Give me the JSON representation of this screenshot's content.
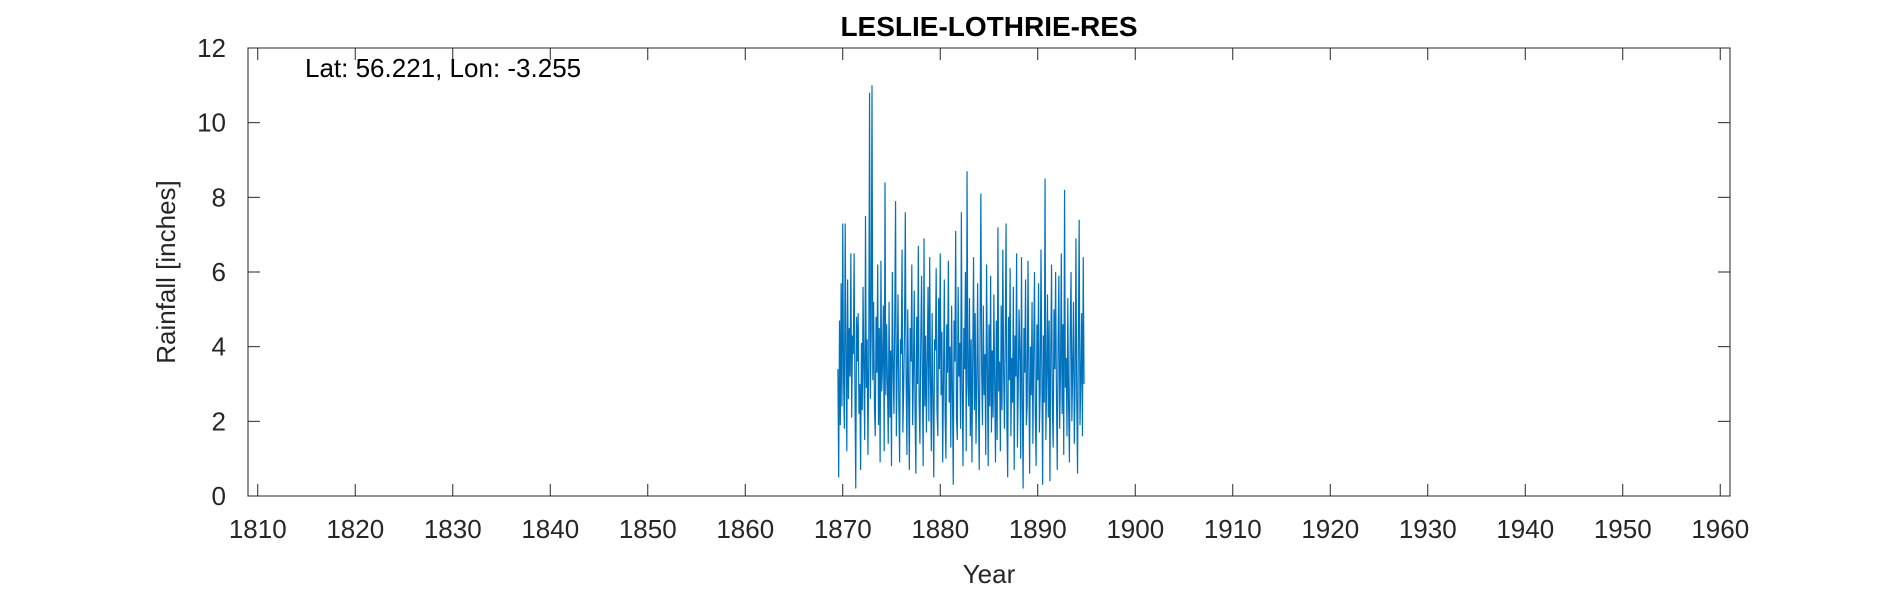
{
  "chart_data": {
    "type": "line",
    "title": "LESLIE-LOTHRIE-RES",
    "xlabel": "Year",
    "ylabel": "Rainfall [inches]",
    "annotation": "Lat: 56.221, Lon: -3.255",
    "xlim": [
      1809,
      1961
    ],
    "ylim": [
      0,
      12
    ],
    "xticks": [
      1810,
      1820,
      1830,
      1840,
      1850,
      1860,
      1870,
      1880,
      1890,
      1900,
      1910,
      1920,
      1930,
      1940,
      1950,
      1960
    ],
    "yticks": [
      0,
      2,
      4,
      6,
      8,
      10,
      12
    ],
    "grid": false,
    "line_color": "#0072BD",
    "series": [
      {
        "x_start": 1869.5,
        "x_step": 0.08333,
        "values": [
          3.4,
          0.5,
          4.7,
          1.9,
          5.7,
          2.4,
          7.3,
          3.1,
          1.8,
          7.3,
          3.9,
          1.2,
          5.8,
          2.6,
          4.5,
          3.2,
          6.5,
          2.1,
          4.3,
          3.8,
          6.5,
          2.8,
          0.2,
          4.8,
          3.6,
          4.9,
          2.2,
          3.0,
          0.7,
          4.1,
          2.3,
          5.6,
          3.3,
          1.5,
          7.5,
          2.9,
          4.2,
          1.1,
          3.7,
          10.8,
          2.6,
          4.4,
          11.0,
          3.1,
          5.2,
          2.4,
          1.6,
          4.8,
          3.3,
          6.2,
          1.9,
          4.5,
          0.9,
          6.3,
          2.8,
          3.6,
          5.1,
          1.2,
          8.4,
          2.7,
          4.6,
          3.0,
          1.4,
          5.2,
          2.1,
          3.9,
          0.8,
          6.0,
          3.5,
          2.2,
          4.8,
          7.9,
          1.6,
          3.4,
          5.4,
          2.5,
          0.9,
          4.2,
          3.8,
          6.6,
          1.7,
          2.9,
          4.4,
          7.6,
          3.2,
          1.1,
          5.0,
          2.8,
          0.7,
          4.5,
          3.6,
          6.2,
          1.9,
          3.3,
          5.5,
          2.2,
          0.6,
          4.8,
          3.0,
          6.7,
          2.5,
          1.4,
          4.1,
          5.9,
          3.2,
          0.8,
          6.9,
          2.4,
          4.3,
          1.7,
          3.7,
          5.6,
          2.0,
          6.4,
          3.1,
          1.2,
          4.9,
          2.6,
          0.5,
          4.2,
          3.9,
          6.1,
          2.3,
          1.6,
          5.3,
          3.4,
          6.5,
          2.7,
          4.4,
          0.9,
          3.1,
          5.8,
          2.2,
          1.0,
          4.6,
          3.3,
          6.3,
          2.5,
          4.0,
          1.3,
          5.1,
          2.8,
          0.3,
          4.7,
          3.6,
          7.1,
          2.1,
          1.5,
          5.6,
          3.2,
          4.1,
          1.8,
          7.6,
          2.9,
          0.8,
          4.5,
          3.4,
          6.0,
          1.2,
          8.7,
          3.0,
          2.4,
          5.3,
          1.6,
          4.2,
          0.9,
          3.8,
          6.4,
          2.3,
          4.9,
          1.4,
          3.1,
          5.7,
          2.6,
          0.7,
          4.4,
          8.1,
          3.3,
          1.9,
          5.1,
          2.7,
          3.8,
          1.1,
          6.2,
          3.5,
          0.8,
          4.6,
          2.4,
          5.9,
          1.7,
          3.9,
          2.1,
          5.4,
          3.0,
          0.9,
          4.7,
          1.5,
          7.2,
          2.8,
          3.6,
          1.2,
          5.1,
          2.3,
          6.6,
          3.4,
          1.8,
          4.2,
          7.3,
          2.0,
          0.5,
          4.8,
          3.1,
          6.1,
          1.6,
          3.7,
          2.5,
          5.6,
          0.7,
          4.3,
          3.2,
          6.5,
          1.3,
          2.9,
          5.0,
          3.8,
          1.0,
          6.4,
          2.6,
          0.2,
          4.5,
          3.3,
          5.8,
          1.9,
          2.4,
          6.3,
          3.5,
          0.6,
          4.0,
          2.7,
          5.2,
          1.4,
          3.9,
          6.0,
          2.2,
          0.8,
          4.6,
          3.1,
          5.7,
          1.7,
          2.8,
          6.6,
          3.6,
          0.3,
          4.3,
          2.5,
          8.5,
          1.5,
          3.2,
          5.4,
          2.1,
          4.7,
          0.4,
          3.8,
          6.2,
          2.4,
          1.3,
          5.0,
          3.4,
          6.0,
          2.7,
          0.7,
          4.1,
          5.9,
          1.8,
          3.3,
          6.5,
          2.2,
          4.6,
          1.1,
          8.2,
          2.9,
          3.7,
          1.6,
          5.3,
          2.4,
          0.9,
          4.4,
          6.0,
          2.0,
          3.5,
          5.2,
          1.4,
          3.0,
          6.9,
          2.6,
          0.6,
          4.2,
          7.4,
          1.9,
          3.1,
          4.9,
          1.6,
          6.4,
          3.0
        ]
      }
    ]
  }
}
